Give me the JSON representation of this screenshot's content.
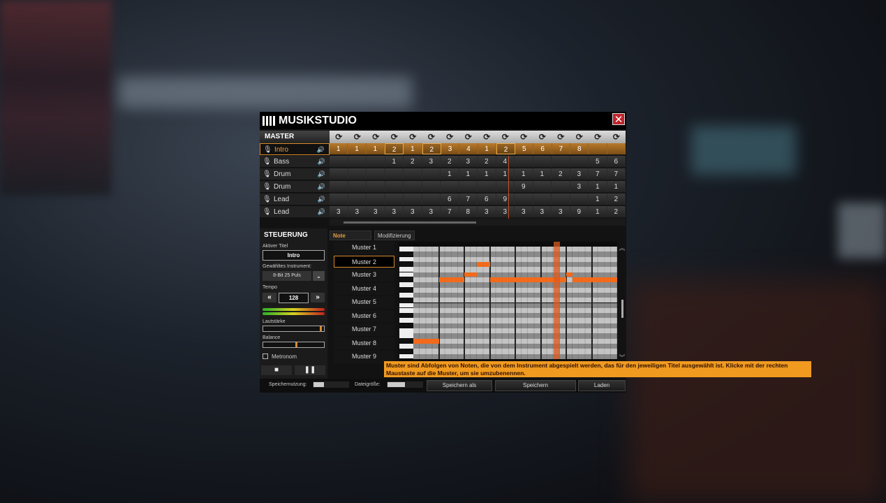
{
  "window": {
    "title": "MUSIKSTUDIO",
    "close": "✕"
  },
  "master": {
    "label": "MASTER",
    "loop_icon": "loop-icon",
    "columns": 16
  },
  "tracks": [
    {
      "name": "Intro",
      "selected": true,
      "cells": [
        "1",
        "1",
        "1",
        "2",
        "1",
        "2",
        "3",
        "4",
        "1",
        "2",
        "5",
        "6",
        "7",
        "8",
        "",
        ""
      ],
      "boxed": [
        3,
        5,
        9
      ]
    },
    {
      "name": "Bass",
      "cells": [
        "",
        "",
        "",
        "1",
        "2",
        "3",
        "2",
        "3",
        "2",
        "4",
        "",
        "",
        "",
        "",
        "5",
        "6"
      ]
    },
    {
      "name": "Drum",
      "cells": [
        "",
        "",
        "",
        "",
        "",
        "",
        "1",
        "1",
        "1",
        "1",
        "1",
        "1",
        "2",
        "3",
        "7",
        "7"
      ]
    },
    {
      "name": "Drum",
      "cells": [
        "",
        "",
        "",
        "",
        "",
        "",
        "",
        "",
        "",
        "",
        "9",
        "",
        "",
        "3",
        "1",
        "1"
      ]
    },
    {
      "name": "Lead",
      "cells": [
        "",
        "",
        "",
        "",
        "",
        "",
        "6",
        "7",
        "6",
        "9",
        "",
        "",
        "",
        "",
        "1",
        "2"
      ]
    },
    {
      "name": "Lead",
      "cells": [
        "3",
        "3",
        "3",
        "3",
        "3",
        "3",
        "7",
        "8",
        "3",
        "3",
        "3",
        "3",
        "3",
        "9",
        "1",
        "2"
      ]
    }
  ],
  "steuerung": {
    "title": "STEUERUNG",
    "active_title_label": "Aktiver Titel",
    "active_title": "Intro",
    "instrument_label": "Gewähltes Instrument:",
    "instrument": "8-Bit 25 Puls",
    "tempo_label": "Tempo",
    "tempo": "128",
    "volume_label": "Lautstärke",
    "volume": 0.97,
    "balance_label": "Balance",
    "balance": 0.55,
    "metronome_label": "Metronom",
    "metronome": false
  },
  "tabs": [
    {
      "label": "Note",
      "active": true
    },
    {
      "label": "Modifizierung"
    }
  ],
  "patterns": [
    "Muster 1",
    "Muster 2",
    "Muster 3",
    "Muster 4",
    "Muster 5",
    "Muster 6",
    "Muster 7",
    "Muster 8",
    "Muster 9"
  ],
  "selected_pattern": 1,
  "piano_roll": {
    "steps": 32,
    "rows": 22,
    "playhead_step": 22,
    "notes": [
      {
        "row": 6,
        "start": 4,
        "len": 4
      },
      {
        "row": 5,
        "start": 8,
        "len": 2
      },
      {
        "row": 3,
        "start": 10,
        "len": 2
      },
      {
        "row": 6,
        "start": 12,
        "len": 12
      },
      {
        "row": 5,
        "start": 24,
        "len": 1
      },
      {
        "row": 6,
        "start": 25,
        "len": 7
      },
      {
        "row": 18,
        "start": 0,
        "len": 4
      }
    ],
    "note_color": "#f26a1a"
  },
  "tooltip": "Muster sind Abfolgen von Noten, die von dem Instrument abgespielt werden, das für den jeweiligen Titel ausgewählt ist. Klicke mit der rechten Maustaste auf die Muster, um sie umzubenennen.",
  "bottom": {
    "memory_label": "Speichernutzung:",
    "memory": 0.3,
    "filesize_label": "Dateigröße:",
    "filesize": 0.5,
    "save_as": "Speichern als",
    "save": "Speichern",
    "load": "Laden"
  },
  "accent": "#d98a2b"
}
